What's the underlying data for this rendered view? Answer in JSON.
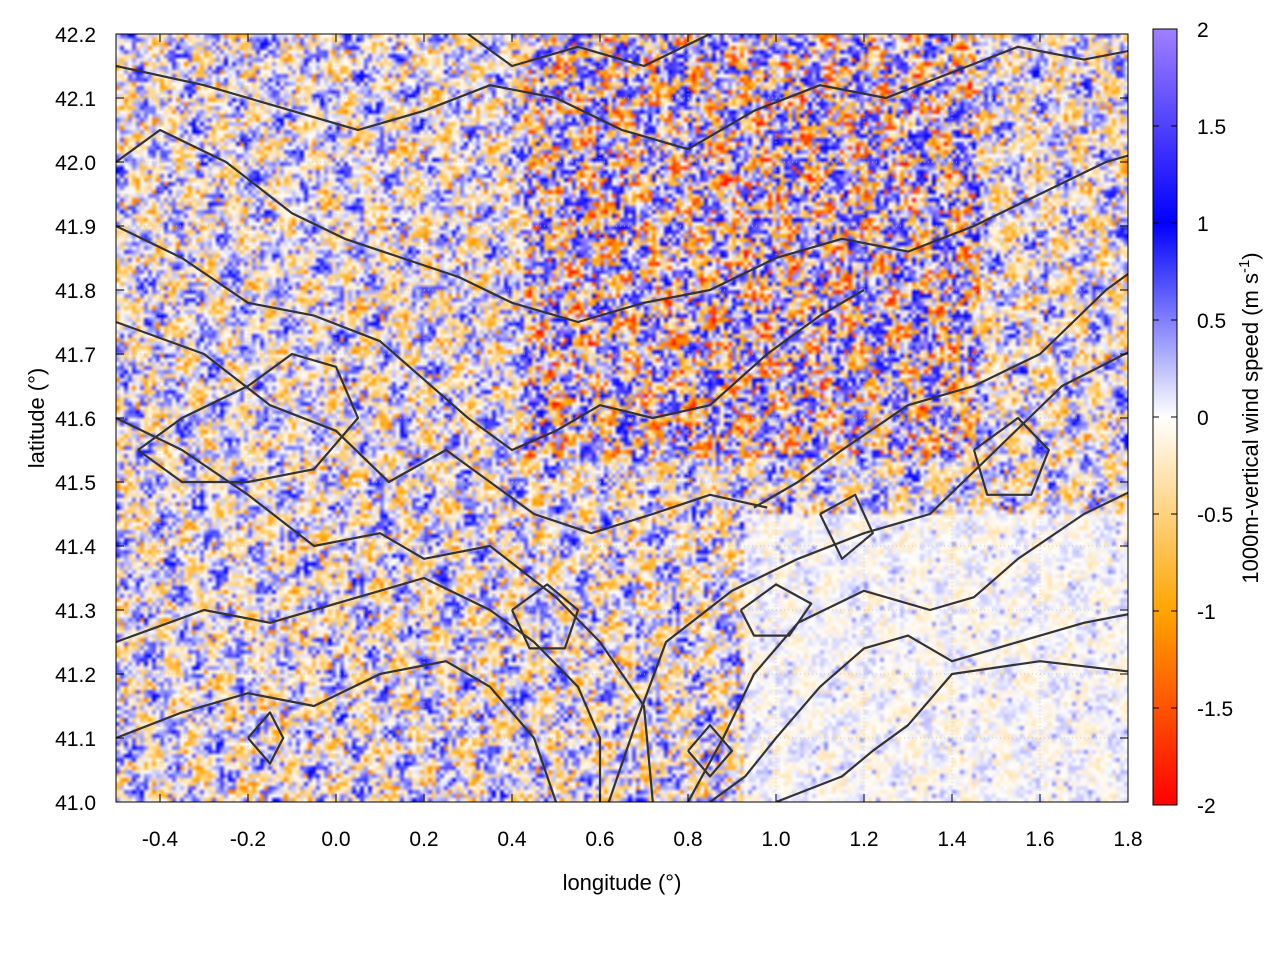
{
  "chart_data": {
    "type": "heatmap",
    "xlabel": "longitude (°)",
    "ylabel": "latitude (°)",
    "colorbar_label_main": "1000m-vertical wind speed (m s",
    "colorbar_label_sup": "-1",
    "colorbar_label_close": ")",
    "xlim": [
      -0.5,
      1.8
    ],
    "ylim": [
      41.0,
      42.2
    ],
    "clim": [
      -2,
      2
    ],
    "x_ticks": [
      -0.4,
      -0.2,
      0.0,
      0.2,
      0.4,
      0.6,
      0.8,
      1.0,
      1.2,
      1.4,
      1.6,
      1.8
    ],
    "x_tick_labels": [
      "-0.4",
      "-0.2",
      "0.0",
      "0.2",
      "0.4",
      "0.6",
      "0.8",
      "1.0",
      "1.2",
      "1.4",
      "1.6",
      "1.8"
    ],
    "y_ticks": [
      41.0,
      41.1,
      41.2,
      41.3,
      41.4,
      41.5,
      41.6,
      41.7,
      41.8,
      41.9,
      42.0,
      42.1,
      42.2
    ],
    "y_tick_labels": [
      "41.0",
      "41.1",
      "41.2",
      "41.3",
      "41.4",
      "41.5",
      "41.6",
      "41.7",
      "41.8",
      "41.9",
      "42.0",
      "42.1",
      "42.2"
    ],
    "colorbar_ticks": [
      -2,
      -1.5,
      -1,
      -0.5,
      0,
      0.5,
      1,
      1.5,
      2
    ],
    "colorbar_tick_labels": [
      "-2",
      "-1.5",
      "-1",
      "-0.5",
      "0",
      "0.5",
      "1",
      "1.5",
      "2"
    ],
    "colormap": [
      {
        "value": -2,
        "color": "#ff0000"
      },
      {
        "value": -1,
        "color": "#ffa500"
      },
      {
        "value": 0,
        "color": "#ffffff"
      },
      {
        "value": 1,
        "color": "#0000ff"
      },
      {
        "value": 2,
        "color": "#a080ff"
      }
    ],
    "grid": true,
    "contour_color": "#333333",
    "contours": [
      [
        [
          1.85,
          41.2
        ],
        [
          1.6,
          41.22
        ],
        [
          1.4,
          41.2
        ],
        [
          1.3,
          41.12
        ],
        [
          1.22,
          41.08
        ],
        [
          1.15,
          41.04
        ],
        [
          1.0,
          41.0
        ]
      ],
      [
        [
          1.85,
          41.3
        ],
        [
          1.7,
          41.28
        ],
        [
          1.5,
          41.24
        ],
        [
          1.4,
          41.22
        ],
        [
          1.3,
          41.26
        ],
        [
          1.2,
          41.24
        ],
        [
          1.1,
          41.18
        ],
        [
          1.0,
          41.1
        ],
        [
          0.93,
          41.04
        ],
        [
          0.85,
          41.0
        ]
      ],
      [
        [
          1.85,
          41.5
        ],
        [
          1.7,
          41.45
        ],
        [
          1.55,
          41.38
        ],
        [
          1.45,
          41.32
        ],
        [
          1.35,
          41.3
        ],
        [
          1.2,
          41.33
        ],
        [
          1.05,
          41.28
        ],
        [
          0.95,
          41.2
        ],
        [
          0.88,
          41.1
        ],
        [
          0.8,
          41.0
        ]
      ],
      [
        [
          1.85,
          41.72
        ],
        [
          1.65,
          41.65
        ],
        [
          1.5,
          41.55
        ],
        [
          1.35,
          41.45
        ],
        [
          1.2,
          41.42
        ],
        [
          1.05,
          41.38
        ],
        [
          0.9,
          41.33
        ],
        [
          0.75,
          41.25
        ],
        [
          0.68,
          41.12
        ],
        [
          0.62,
          41.0
        ]
      ],
      [
        [
          0.95,
          41.46
        ],
        [
          1.05,
          41.5
        ],
        [
          1.15,
          41.55
        ],
        [
          1.3,
          41.62
        ],
        [
          1.45,
          41.65
        ],
        [
          1.6,
          41.7
        ],
        [
          1.75,
          41.8
        ],
        [
          1.85,
          41.85
        ]
      ],
      [
        [
          -0.5,
          41.1
        ],
        [
          -0.35,
          41.14
        ],
        [
          -0.2,
          41.17
        ],
        [
          -0.05,
          41.15
        ],
        [
          0.1,
          41.2
        ],
        [
          0.25,
          41.22
        ],
        [
          0.35,
          41.18
        ],
        [
          0.45,
          41.1
        ],
        [
          0.5,
          41.0
        ]
      ],
      [
        [
          -0.5,
          41.25
        ],
        [
          -0.3,
          41.3
        ],
        [
          -0.15,
          41.28
        ],
        [
          0.05,
          41.32
        ],
        [
          0.2,
          41.35
        ],
        [
          0.35,
          41.3
        ],
        [
          0.45,
          41.25
        ],
        [
          0.55,
          41.18
        ],
        [
          0.6,
          41.1
        ],
        [
          0.6,
          41.0
        ]
      ],
      [
        [
          -0.5,
          41.6
        ],
        [
          -0.35,
          41.55
        ],
        [
          -0.2,
          41.48
        ],
        [
          -0.05,
          41.4
        ],
        [
          0.1,
          41.42
        ],
        [
          0.2,
          41.38
        ],
        [
          0.35,
          41.4
        ],
        [
          0.5,
          41.32
        ],
        [
          0.6,
          41.25
        ],
        [
          0.7,
          41.15
        ],
        [
          0.72,
          41.0
        ]
      ],
      [
        [
          -0.5,
          41.75
        ],
        [
          -0.3,
          41.7
        ],
        [
          -0.15,
          41.62
        ],
        [
          0.0,
          41.58
        ],
        [
          0.12,
          41.5
        ],
        [
          0.25,
          41.55
        ],
        [
          0.35,
          41.5
        ],
        [
          0.45,
          41.45
        ],
        [
          0.58,
          41.42
        ],
        [
          0.72,
          41.45
        ],
        [
          0.85,
          41.48
        ],
        [
          0.98,
          41.46
        ]
      ],
      [
        [
          -0.5,
          41.9
        ],
        [
          -0.35,
          41.85
        ],
        [
          -0.2,
          41.78
        ],
        [
          -0.05,
          41.76
        ],
        [
          0.1,
          41.72
        ],
        [
          0.2,
          41.66
        ],
        [
          0.3,
          41.6
        ],
        [
          0.4,
          41.55
        ],
        [
          0.5,
          41.58
        ],
        [
          0.6,
          41.62
        ],
        [
          0.72,
          41.6
        ],
        [
          0.85,
          41.62
        ],
        [
          0.98,
          41.7
        ],
        [
          1.1,
          41.76
        ],
        [
          1.2,
          41.8
        ]
      ],
      [
        [
          -0.5,
          42.0
        ],
        [
          -0.4,
          42.05
        ],
        [
          -0.25,
          42.0
        ],
        [
          -0.1,
          41.92
        ],
        [
          0.02,
          41.88
        ],
        [
          0.15,
          41.85
        ],
        [
          0.28,
          41.82
        ],
        [
          0.4,
          41.78
        ],
        [
          0.55,
          41.75
        ],
        [
          0.7,
          41.78
        ],
        [
          0.85,
          41.8
        ],
        [
          1.0,
          41.85
        ],
        [
          1.15,
          41.88
        ],
        [
          1.3,
          41.86
        ],
        [
          1.45,
          41.9
        ],
        [
          1.6,
          41.95
        ],
        [
          1.75,
          42.0
        ],
        [
          1.85,
          42.02
        ]
      ],
      [
        [
          -0.5,
          42.15
        ],
        [
          -0.3,
          42.12
        ],
        [
          -0.1,
          42.08
        ],
        [
          0.05,
          42.05
        ],
        [
          0.2,
          42.08
        ],
        [
          0.35,
          42.12
        ],
        [
          0.5,
          42.1
        ],
        [
          0.65,
          42.05
        ],
        [
          0.8,
          42.02
        ],
        [
          0.95,
          42.08
        ],
        [
          1.1,
          42.12
        ],
        [
          1.25,
          42.1
        ],
        [
          1.4,
          42.14
        ],
        [
          1.55,
          42.18
        ],
        [
          1.7,
          42.16
        ],
        [
          1.85,
          42.18
        ]
      ],
      [
        [
          0.3,
          42.2
        ],
        [
          0.4,
          42.15
        ],
        [
          0.55,
          42.18
        ],
        [
          0.7,
          42.15
        ],
        [
          0.85,
          42.2
        ]
      ],
      [
        [
          -0.45,
          41.55
        ],
        [
          -0.35,
          41.6
        ],
        [
          -0.2,
          41.65
        ],
        [
          -0.1,
          41.7
        ],
        [
          0.0,
          41.68
        ],
        [
          0.05,
          41.6
        ],
        [
          -0.05,
          41.52
        ],
        [
          -0.2,
          41.5
        ],
        [
          -0.35,
          41.5
        ],
        [
          -0.45,
          41.55
        ]
      ],
      [
        [
          0.4,
          41.3
        ],
        [
          0.48,
          41.34
        ],
        [
          0.55,
          41.3
        ],
        [
          0.52,
          41.24
        ],
        [
          0.44,
          41.24
        ],
        [
          0.4,
          41.3
        ]
      ],
      [
        [
          0.92,
          41.3
        ],
        [
          1.0,
          41.34
        ],
        [
          1.08,
          41.31
        ],
        [
          1.03,
          41.26
        ],
        [
          0.95,
          41.26
        ],
        [
          0.92,
          41.3
        ]
      ],
      [
        [
          1.45,
          41.55
        ],
        [
          1.55,
          41.6
        ],
        [
          1.62,
          41.55
        ],
        [
          1.58,
          41.48
        ],
        [
          1.48,
          41.48
        ],
        [
          1.45,
          41.55
        ]
      ],
      [
        [
          -0.2,
          41.1
        ],
        [
          -0.15,
          41.14
        ],
        [
          -0.12,
          41.1
        ],
        [
          -0.15,
          41.06
        ],
        [
          -0.2,
          41.1
        ]
      ],
      [
        [
          0.8,
          41.08
        ],
        [
          0.85,
          41.12
        ],
        [
          0.9,
          41.08
        ],
        [
          0.85,
          41.04
        ],
        [
          0.8,
          41.08
        ]
      ],
      [
        [
          1.1,
          41.45
        ],
        [
          1.18,
          41.48
        ],
        [
          1.22,
          41.42
        ],
        [
          1.15,
          41.38
        ],
        [
          1.1,
          41.45
        ]
      ]
    ]
  }
}
